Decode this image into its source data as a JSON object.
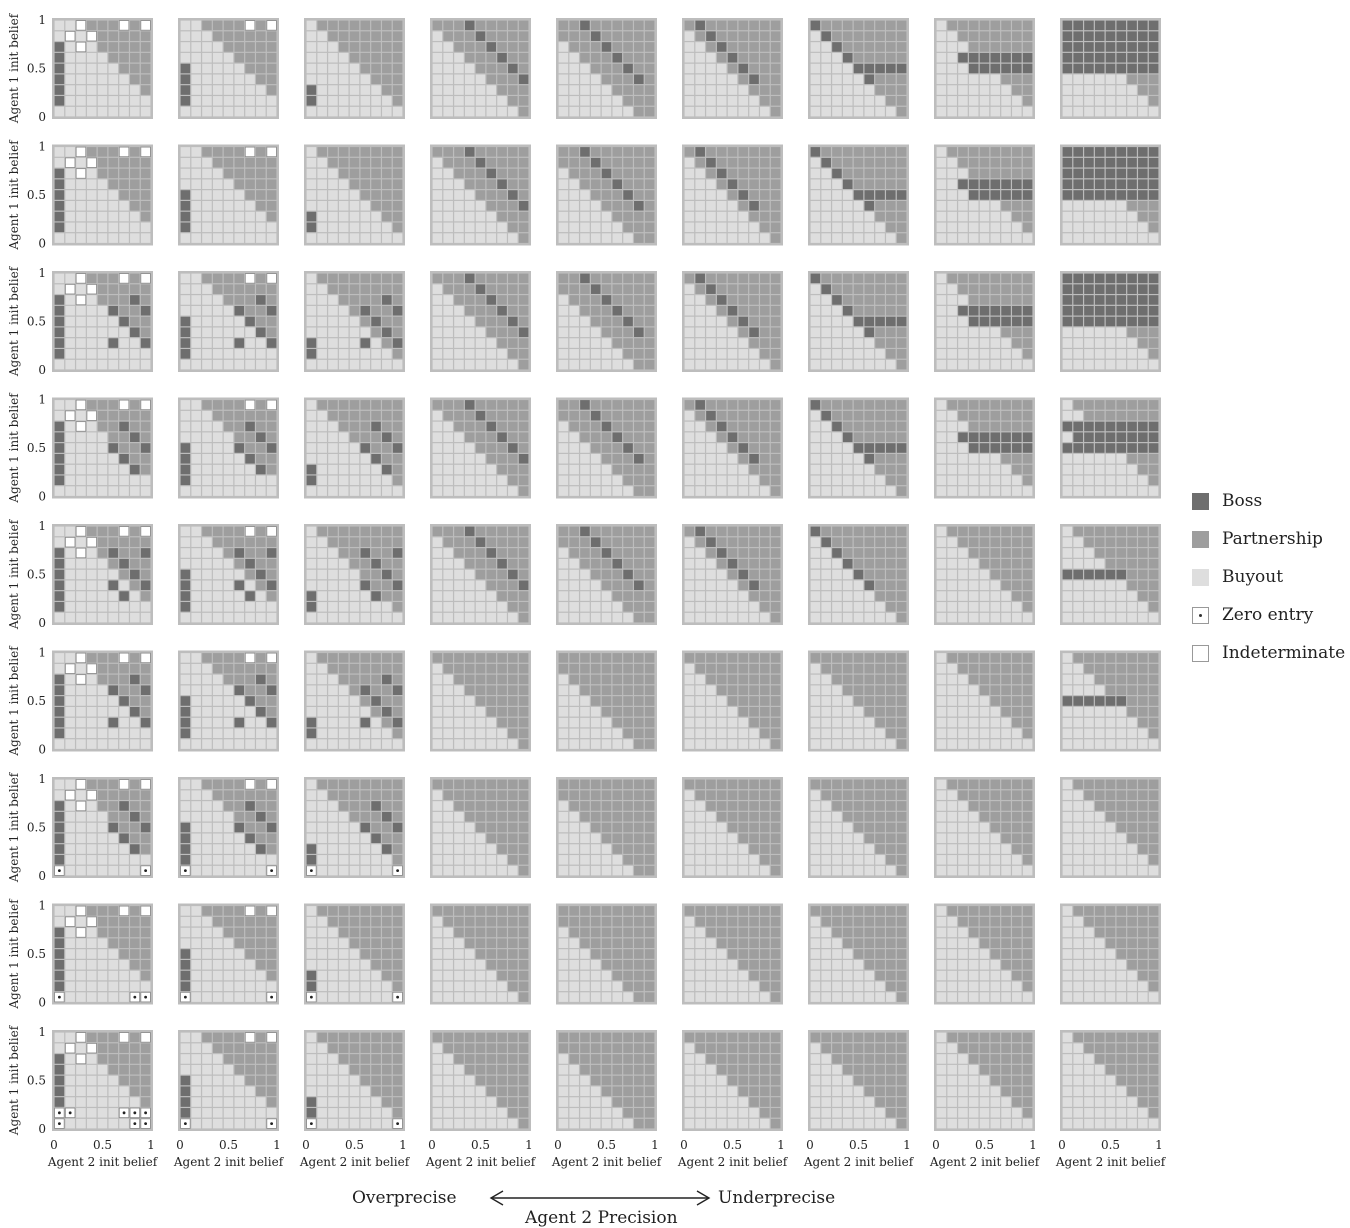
{
  "chart_data": {
    "type": "heatmap",
    "grid_rows": 9,
    "grid_cols": 9,
    "cells_per_side": 9,
    "ylabel": "Agent 1 init belief",
    "xlabel": "Agent 2 init belief",
    "y_ticks": [
      "0",
      "0.5",
      "1"
    ],
    "x_ticks": [
      "0",
      "0.5",
      "1"
    ],
    "xlim": [
      0,
      1
    ],
    "ylim": [
      0,
      1
    ],
    "panel_grid_note": "Each small panel is a 9x9 grid of outcomes; rows of the figure vary Agent 1 precision, columns vary Agent 2 precision.",
    "legend": [
      {
        "key": "B",
        "label": "Boss",
        "color": "#6e6e6e"
      },
      {
        "key": "P",
        "label": "Partnership",
        "color": "#9e9e9e"
      },
      {
        "key": "Y",
        "label": "Buyout",
        "color": "#dedede"
      },
      {
        "key": "Z",
        "label": "Zero entry",
        "color": "#ffffff"
      },
      {
        "key": "I",
        "label": "Indeterminate",
        "color": "#ffffff"
      }
    ],
    "bottom_axis": {
      "left_label": "Overprecise",
      "right_label": "Underprecise",
      "title": "Agent 2 Precision"
    }
  }
}
